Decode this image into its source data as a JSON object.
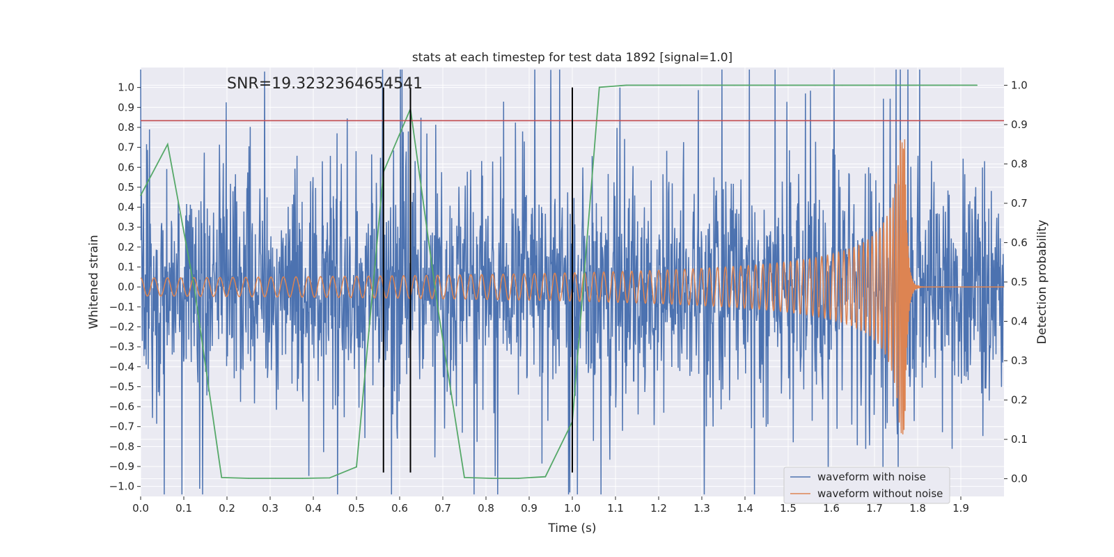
{
  "chart_data": {
    "type": "line",
    "title": "stats at each timestep for test data 1892 [signal=1.0]",
    "xlabel": "Time (s)",
    "ylabel": "Whitened strain",
    "y2label": "Detection probability",
    "xlim": [
      0.0,
      2.0
    ],
    "ylim": [
      -1.05,
      1.1
    ],
    "y2lim": [
      -0.045,
      1.045
    ],
    "x_ticks": [
      0.0,
      0.1,
      0.2,
      0.3,
      0.4,
      0.5,
      0.6,
      0.7,
      0.8,
      0.9,
      1.0,
      1.1,
      1.2,
      1.3,
      1.4,
      1.5,
      1.6,
      1.7,
      1.8,
      1.9
    ],
    "x_tick_labels": [
      "0.0",
      "0.1",
      "0.2",
      "0.3",
      "0.4",
      "0.5",
      "0.6",
      "0.7",
      "0.8",
      "0.9",
      "1.0",
      "1.1",
      "1.2",
      "1.3",
      "1.4",
      "1.5",
      "1.6",
      "1.7",
      "1.8",
      "1.9"
    ],
    "y_ticks": [
      1.0,
      0.9,
      0.8,
      0.7,
      0.6,
      0.5,
      0.4,
      0.3,
      0.2,
      0.1,
      0.0,
      -0.1,
      -0.2,
      -0.3,
      -0.4,
      -0.5,
      -0.6,
      -0.7,
      -0.8,
      -0.9,
      -1.0
    ],
    "y_tick_labels": [
      "1.0",
      "0.9",
      "0.8",
      "0.7",
      "0.6",
      "0.5",
      "0.4",
      "0.3",
      "0.2",
      "0.1",
      "0.0",
      "−0.1",
      "−0.2",
      "−0.3",
      "−0.4",
      "−0.5",
      "−0.6",
      "−0.7",
      "−0.8",
      "−0.9",
      "−1.0"
    ],
    "y2_ticks": [
      1.0,
      0.9,
      0.8,
      0.7,
      0.6,
      0.5,
      0.4,
      0.3,
      0.2,
      0.1,
      0.0
    ],
    "y2_tick_labels": [
      "1.0",
      "0.9",
      "0.8",
      "0.7",
      "0.6",
      "0.5",
      "0.4",
      "0.3",
      "0.2",
      "0.1",
      "0.0"
    ],
    "annotation": "SNR=19.3232364654541",
    "annotation_at": [
      0.2,
      0.995
    ],
    "threshold": {
      "axis": "y2",
      "value": 0.91,
      "color": "#c44e52"
    },
    "vlines": [
      {
        "x": 0.5625,
        "ymin": -0.93,
        "ymax": 1.0
      },
      {
        "x": 0.625,
        "ymin": -0.93,
        "ymax": 1.0
      },
      {
        "x": 1.0,
        "ymin": -0.93,
        "ymax": 1.0
      }
    ],
    "series": [
      {
        "name": "waveform with noise",
        "axis": "y",
        "color": "#4c72b0",
        "kind": "noise",
        "seed": 1892,
        "samples": 2048,
        "t_end": 2.0,
        "std": 0.27,
        "burst_every": 7,
        "burst_scale": 2.2,
        "peaks": [
          [
            0.455,
            0.77
          ],
          [
            0.62,
            0.78
          ],
          [
            0.885,
            0.78
          ],
          [
            1.11,
            1.0
          ],
          [
            1.54,
            0.97
          ],
          [
            1.72,
            -0.92
          ],
          [
            1.755,
            -0.93
          ]
        ]
      },
      {
        "name": "waveform without noise",
        "axis": "y",
        "color": "#dd8452",
        "kind": "chirp",
        "t_merge": 1.77,
        "t_end": 2.0,
        "f0": 32,
        "f_end": 520,
        "amp0": 0.045,
        "amp_peak": 0.74,
        "ringdown_tau": 0.006
      },
      {
        "name": "detection probability",
        "axis": "y2",
        "color": "#55a868",
        "kind": "points",
        "x": [
          0.0,
          0.0625,
          0.125,
          0.1875,
          0.25,
          0.3125,
          0.375,
          0.4375,
          0.5,
          0.5625,
          0.625,
          0.6875,
          0.75,
          0.8125,
          0.875,
          0.9375,
          1.0,
          1.0625,
          1.125,
          1.1875,
          1.25,
          1.3125,
          1.375,
          1.4375,
          1.5,
          1.5625,
          1.625,
          1.6875,
          1.75,
          1.8125,
          1.875,
          1.9375
        ],
        "values": [
          0.72,
          0.85,
          0.48,
          0.003,
          0.001,
          0.001,
          0.001,
          0.002,
          0.03,
          0.78,
          0.94,
          0.44,
          0.003,
          0.001,
          0.001,
          0.005,
          0.145,
          0.995,
          1.0,
          1.0,
          1.0,
          1.0,
          1.0,
          1.0,
          1.0,
          1.0,
          1.0,
          1.0,
          1.0,
          1.0,
          1.0,
          1.0
        ]
      }
    ],
    "legend": {
      "position": "lower-right",
      "entries": [
        {
          "label": "waveform with noise",
          "color": "#4c72b0"
        },
        {
          "label": "waveform without noise",
          "color": "#dd8452"
        }
      ]
    },
    "style": {
      "background": "#eaeaf2",
      "grid_color": "#ffffff",
      "vline_color": "#000000"
    }
  }
}
